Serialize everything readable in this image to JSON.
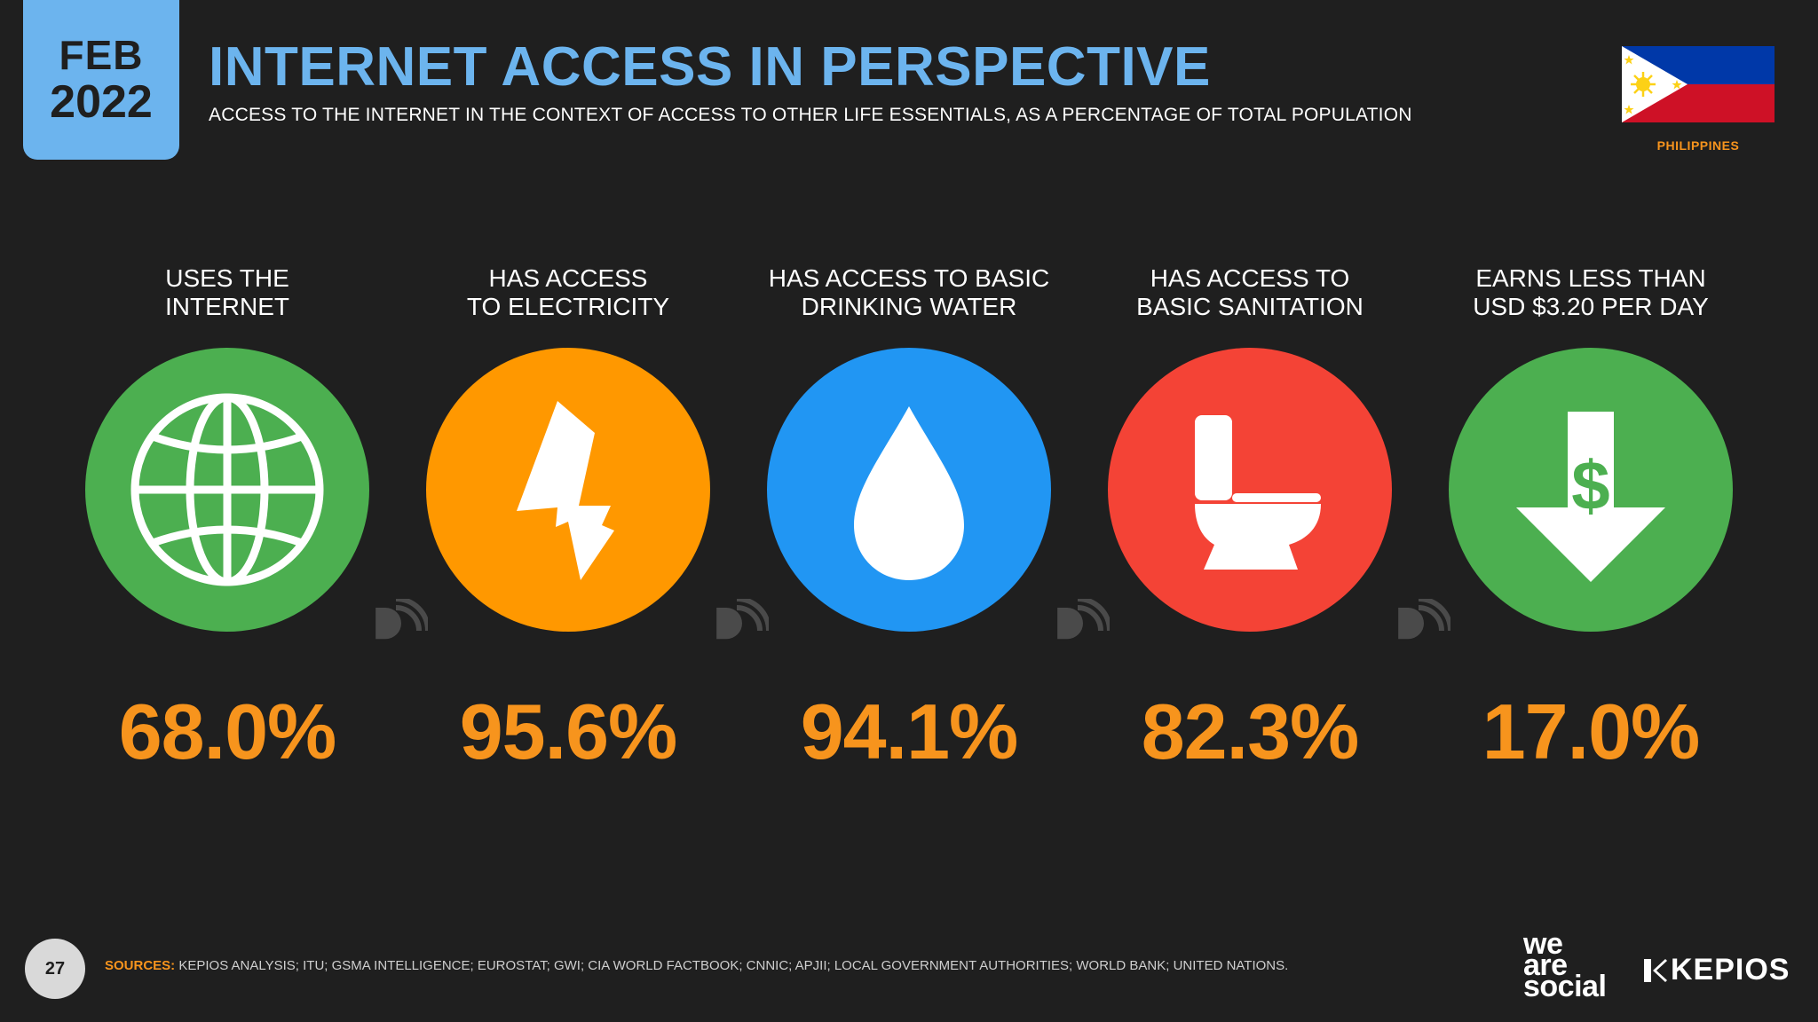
{
  "header": {
    "month": "FEB",
    "year": "2022",
    "title": "INTERNET ACCESS IN PERSPECTIVE",
    "subtitle": "ACCESS TO THE INTERNET IN THE CONTEXT OF ACCESS TO OTHER LIFE ESSENTIALS, AS A PERCENTAGE OF TOTAL POPULATION",
    "country": "PHILIPPINES"
  },
  "stats": [
    {
      "label": "USES THE\nINTERNET",
      "value": "68.0%",
      "icon": "globe-icon",
      "color": "#4caf50"
    },
    {
      "label": "HAS ACCESS\nTO ELECTRICITY",
      "value": "95.6%",
      "icon": "lightning-icon",
      "color": "#ff9800"
    },
    {
      "label": "HAS ACCESS TO BASIC\nDRINKING WATER",
      "value": "94.1%",
      "icon": "water-drop-icon",
      "color": "#2196f3"
    },
    {
      "label": "HAS ACCESS TO\nBASIC SANITATION",
      "value": "82.3%",
      "icon": "toilet-icon",
      "color": "#f44336"
    },
    {
      "label": "EARNS LESS THAN\nUSD $3.20 PER DAY",
      "value": "17.0%",
      "icon": "dollar-down-arrow-icon",
      "color": "#4caf50"
    }
  ],
  "footer": {
    "page_number": "27",
    "sources_label": "SOURCES:",
    "sources_text": "KEPIOS ANALYSIS; ITU; GSMA INTELLIGENCE; EUROSTAT; GWI; CIA WORLD FACTBOOK; CNNIC; APJII; LOCAL GOVERNMENT AUTHORITIES; WORLD BANK; UNITED NATIONS.",
    "logo_line1": "we",
    "logo_line2": "are",
    "logo_line3": "social",
    "kepios_label": "KEPIOS"
  },
  "colors": {
    "background": "#1f1f1f",
    "accent_blue": "#6cb4ee",
    "accent_orange": "#f7941d"
  }
}
